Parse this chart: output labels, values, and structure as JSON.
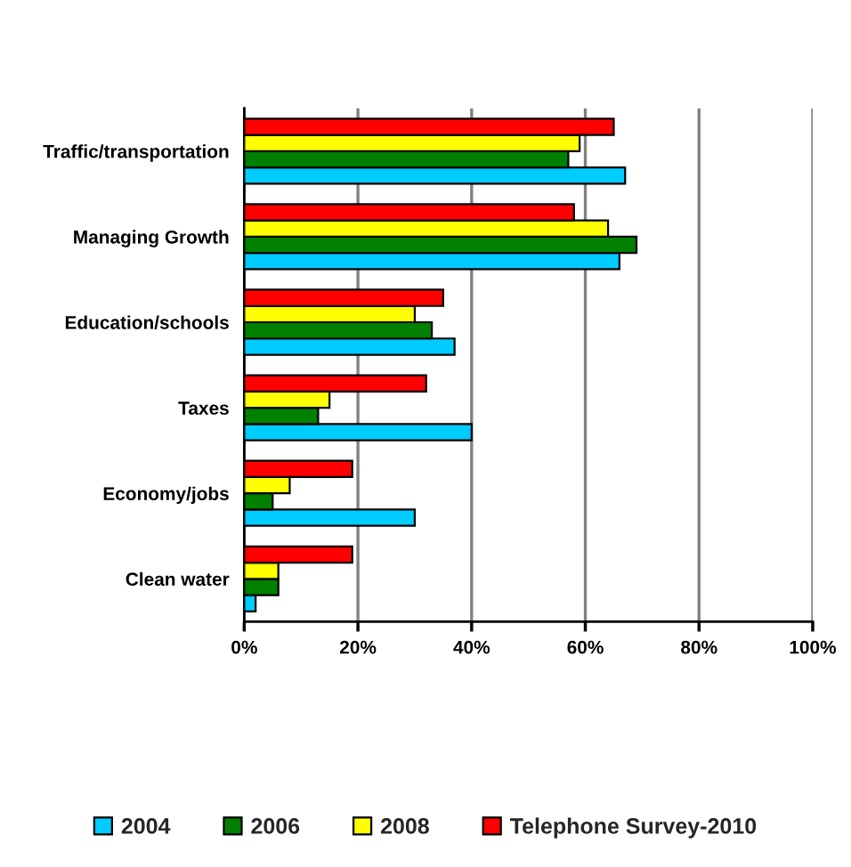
{
  "chart_data": {
    "type": "bar",
    "orientation": "horizontal",
    "categories": [
      "Traffic/transportation",
      "Managing Growth",
      "Education/schools",
      "Taxes",
      "Economy/jobs",
      "Clean water"
    ],
    "series": [
      {
        "name": "2004",
        "color": "#00ccff",
        "values": [
          67,
          66,
          37,
          40,
          30,
          2
        ]
      },
      {
        "name": "2006",
        "color": "#008000",
        "values": [
          57,
          69,
          33,
          13,
          5,
          6
        ]
      },
      {
        "name": "2008",
        "color": "#ffff00",
        "values": [
          59,
          64,
          30,
          15,
          8,
          6
        ]
      },
      {
        "name": "Telephone Survey-2010",
        "color": "#ff0000",
        "values": [
          65,
          58,
          35,
          32,
          19,
          19
        ]
      }
    ],
    "xlim": [
      0,
      100
    ],
    "xticks": [
      {
        "value": 0,
        "label": "0%"
      },
      {
        "value": 20,
        "label": "20%"
      },
      {
        "value": 40,
        "label": "40%"
      },
      {
        "value": 60,
        "label": "60%"
      },
      {
        "value": 80,
        "label": "80%"
      },
      {
        "value": 100,
        "label": "100%"
      }
    ],
    "grid": "x",
    "legend": "bottom"
  }
}
